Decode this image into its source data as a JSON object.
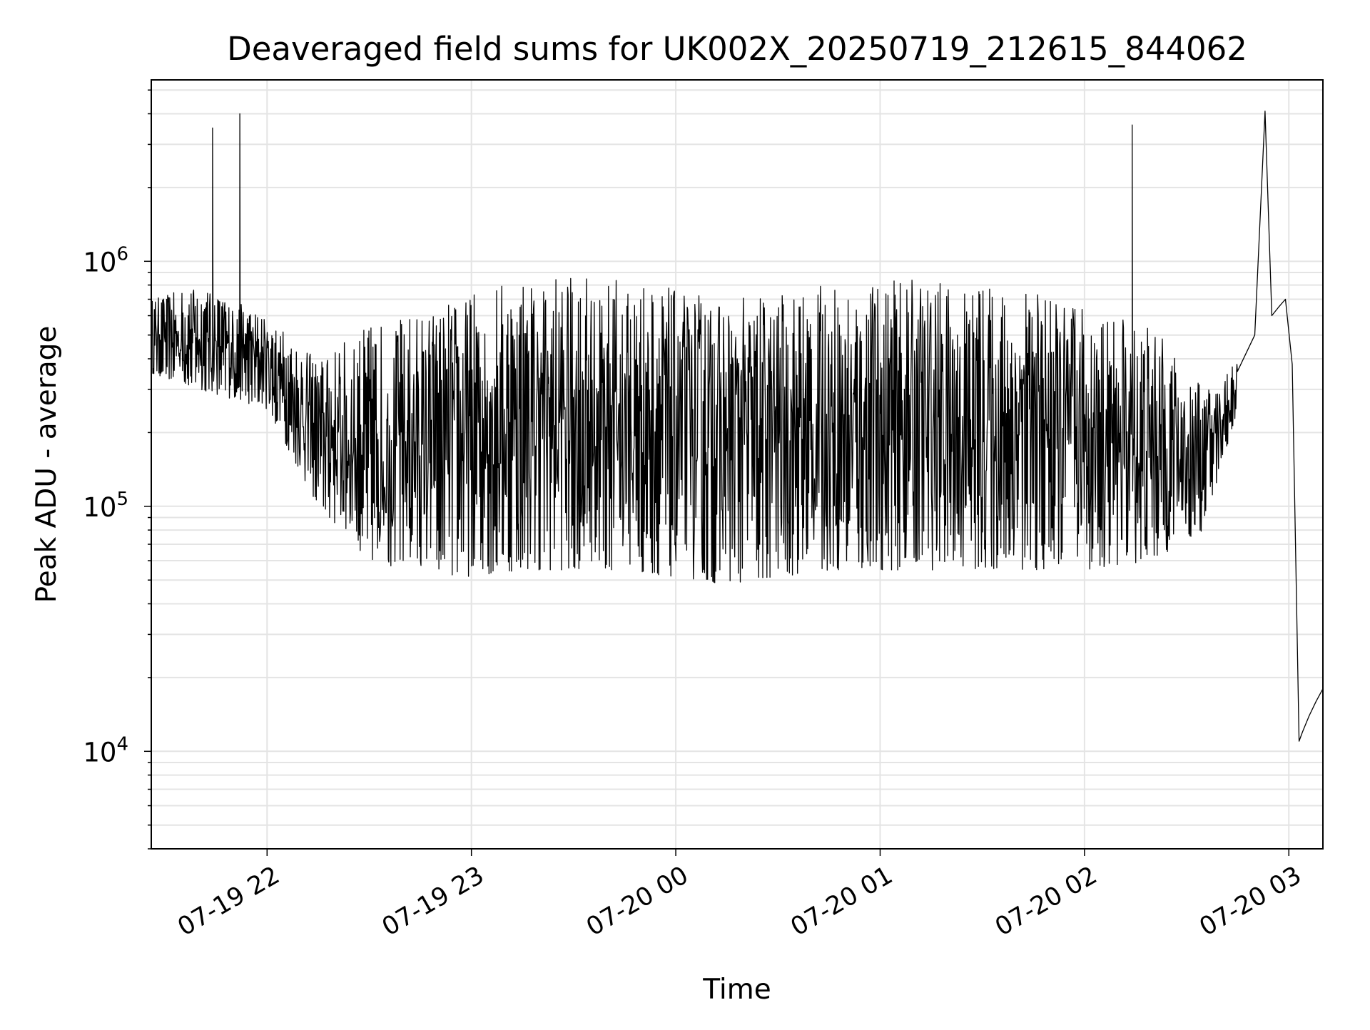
{
  "chart_data": {
    "type": "line",
    "title": "Deaveraged field sums for UK002X_20250719_212615_844062",
    "xlabel": "Time",
    "ylabel": "Peak ADU - average",
    "yscale": "log",
    "grid": true,
    "xlim": [
      "2025-07-19 21:26",
      "2025-07-20 03:10"
    ],
    "ylim": [
      4000,
      5500000
    ],
    "x_ticks": [
      {
        "time": "2025-07-19 22:00",
        "label": "07-19 22"
      },
      {
        "time": "2025-07-19 23:00",
        "label": "07-19 23"
      },
      {
        "time": "2025-07-20 00:00",
        "label": "07-20 00"
      },
      {
        "time": "2025-07-20 01:00",
        "label": "07-20 01"
      },
      {
        "time": "2025-07-20 02:00",
        "label": "07-20 02"
      },
      {
        "time": "2025-07-20 03:00",
        "label": "07-20 03"
      }
    ],
    "y_ticks": [
      {
        "value": 10000,
        "base": "10",
        "exp": "4"
      },
      {
        "value": 100000,
        "base": "10",
        "exp": "5"
      },
      {
        "value": 1000000,
        "base": "10",
        "exp": "6"
      }
    ],
    "series_color": "#000000",
    "series": [
      {
        "x": [
          "2025-07-19 21:26",
          "2025-07-19 21:30",
          "2025-07-19 21:35",
          "2025-07-19 21:40",
          "2025-07-19 21:44",
          "2025-07-19 21:46",
          "2025-07-19 21:48",
          "2025-07-19 21:50",
          "2025-07-19 21:52",
          "2025-07-19 21:55",
          "2025-07-19 21:58",
          "2025-07-19 22:00",
          "2025-07-19 22:05",
          "2025-07-19 22:10",
          "2025-07-19 22:15",
          "2025-07-19 22:20",
          "2025-07-19 22:25",
          "2025-07-19 22:30",
          "2025-07-19 22:35",
          "2025-07-19 22:40",
          "2025-07-19 22:45",
          "2025-07-19 22:50",
          "2025-07-19 22:55",
          "2025-07-19 23:00",
          "2025-07-19 23:05",
          "2025-07-19 23:10",
          "2025-07-19 23:15",
          "2025-07-19 23:20",
          "2025-07-19 23:25",
          "2025-07-19 23:30",
          "2025-07-19 23:35",
          "2025-07-19 23:40",
          "2025-07-19 23:45",
          "2025-07-19 23:50",
          "2025-07-19 23:55",
          "2025-07-20 00:00",
          "2025-07-20 00:05",
          "2025-07-20 00:10",
          "2025-07-20 00:15",
          "2025-07-20 00:20",
          "2025-07-20 00:25",
          "2025-07-20 00:30",
          "2025-07-20 00:35",
          "2025-07-20 00:40",
          "2025-07-20 00:45",
          "2025-07-20 00:50",
          "2025-07-20 00:55",
          "2025-07-20 01:00",
          "2025-07-20 01:05",
          "2025-07-20 01:10",
          "2025-07-20 01:15",
          "2025-07-20 01:20",
          "2025-07-20 01:25",
          "2025-07-20 01:30",
          "2025-07-20 01:35",
          "2025-07-20 01:40",
          "2025-07-20 01:45",
          "2025-07-20 01:50",
          "2025-07-20 01:55",
          "2025-07-20 02:00",
          "2025-07-20 02:05",
          "2025-07-20 02:10",
          "2025-07-20 02:14",
          "2025-07-20 02:20",
          "2025-07-20 02:25",
          "2025-07-20 02:30",
          "2025-07-20 02:35",
          "2025-07-20 02:40",
          "2025-07-20 02:45",
          "2025-07-20 02:50",
          "2025-07-20 02:53",
          "2025-07-20 02:55",
          "2025-07-20 02:57",
          "2025-07-20 02:59",
          "2025-07-20 03:01",
          "2025-07-20 03:03",
          "2025-07-20 03:04",
          "2025-07-20 03:06",
          "2025-07-20 03:08",
          "2025-07-20 03:10"
        ],
        "y": [
          450000,
          600000,
          550000,
          500000,
          3500000,
          450000,
          400000,
          420000,
          4000000,
          380000,
          350000,
          320000,
          250000,
          180000,
          130000,
          110000,
          100000,
          90000,
          85000,
          80000,
          78000,
          75000,
          72000,
          70000,
          70000,
          72000,
          75000,
          80000,
          78000,
          70000,
          68000,
          70000,
          65000,
          68000,
          70000,
          72000,
          70000,
          60000,
          65000,
          70000,
          72000,
          70000,
          68000,
          72000,
          75000,
          78000,
          75000,
          72000,
          75000,
          78000,
          80000,
          75000,
          72000,
          70000,
          75000,
          78000,
          80000,
          82000,
          80000,
          78000,
          85000,
          100000,
          3600000,
          120000,
          140000,
          130000,
          140000,
          250000,
          400000,
          500000,
          4100000,
          600000,
          650000,
          700000,
          380000,
          11000,
          12000,
          14000,
          16000,
          18000
        ]
      }
    ],
    "envelope": {
      "x": [
        "2025-07-19 21:26",
        "2025-07-19 21:40",
        "2025-07-19 22:00",
        "2025-07-19 22:15",
        "2025-07-19 22:30",
        "2025-07-19 22:50",
        "2025-07-19 23:15",
        "2025-07-19 23:45",
        "2025-07-20 00:15",
        "2025-07-20 00:45",
        "2025-07-20 01:15",
        "2025-07-20 01:45",
        "2025-07-20 02:00",
        "2025-07-20 02:20",
        "2025-07-20 02:35",
        "2025-07-20 02:45"
      ],
      "upper": [
        700000,
        800000,
        600000,
        400000,
        550000,
        650000,
        900000,
        850000,
        700000,
        800000,
        850000,
        750000,
        650000,
        550000,
        300000,
        400000
      ],
      "lower": [
        350000,
        300000,
        250000,
        100000,
        60000,
        50000,
        55000,
        55000,
        48000,
        55000,
        55000,
        55000,
        55000,
        60000,
        80000,
        250000
      ]
    }
  }
}
